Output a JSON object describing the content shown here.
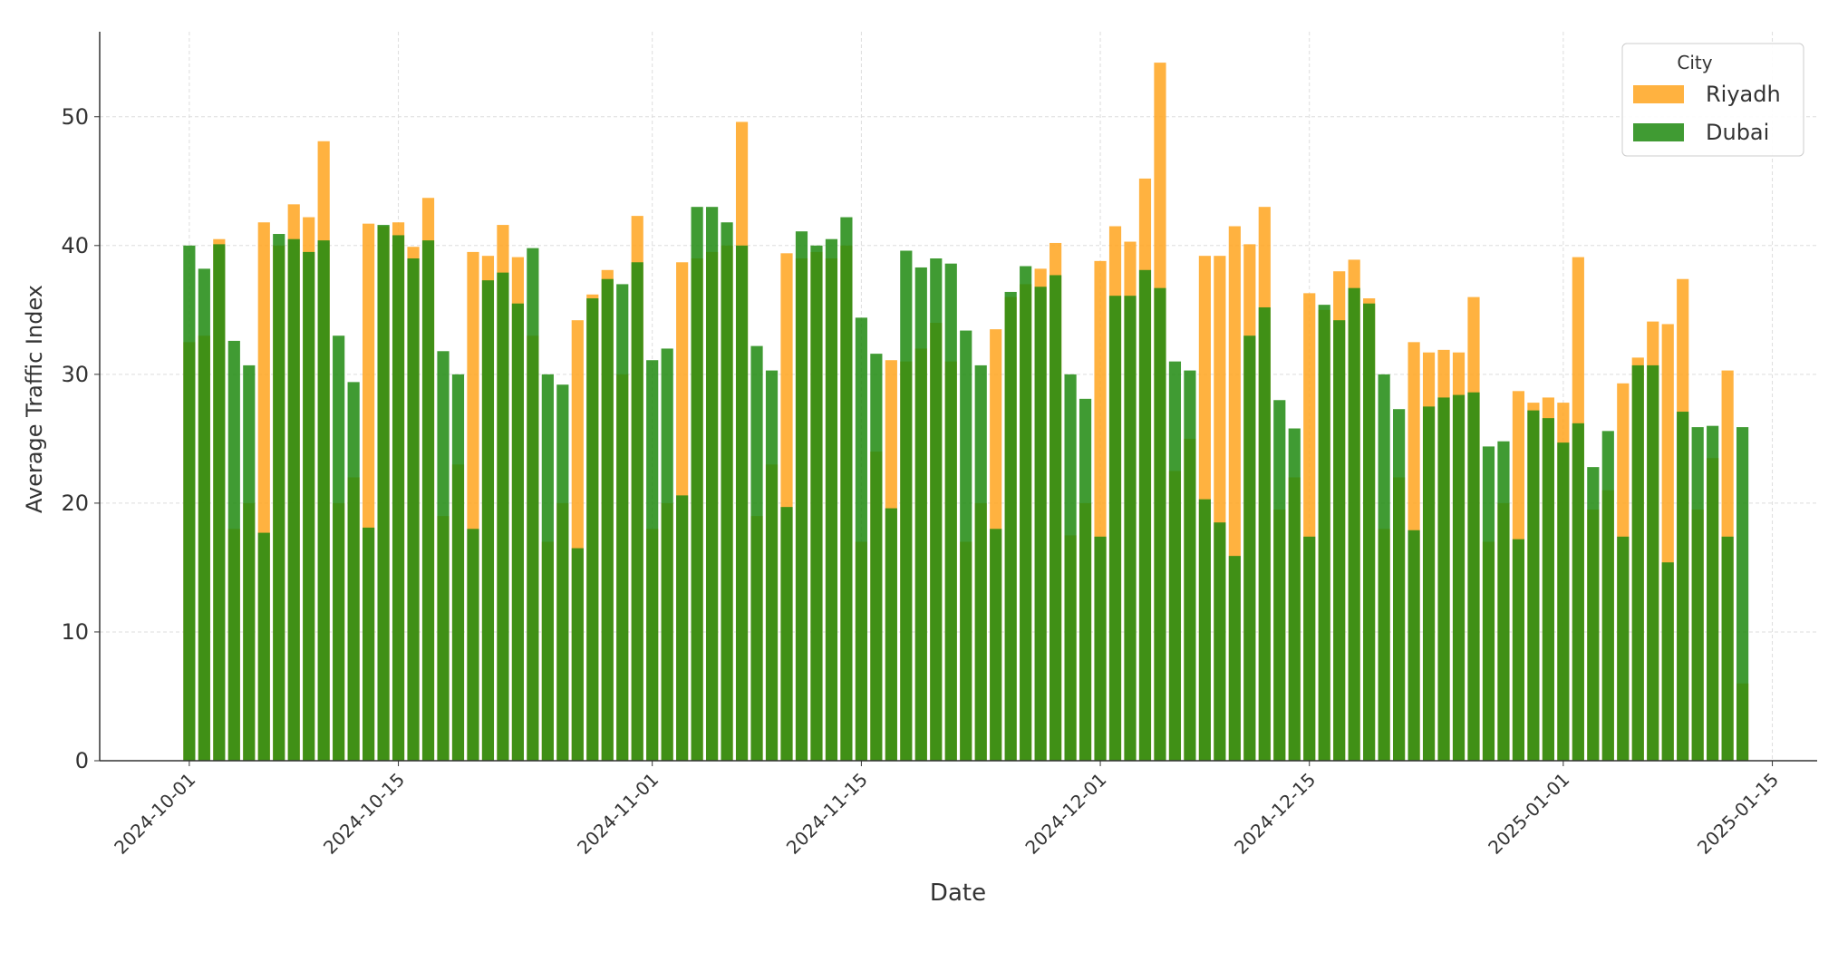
{
  "chart_data": {
    "type": "bar",
    "xlabel": "Date",
    "ylabel": "Average Traffic Index",
    "legend_title": "City",
    "legend": "upper right",
    "grid": true,
    "x": [
      "2024-10-01",
      "2024-10-02",
      "2024-10-03",
      "2024-10-04",
      "2024-10-05",
      "2024-10-06",
      "2024-10-07",
      "2024-10-08",
      "2024-10-09",
      "2024-10-10",
      "2024-10-11",
      "2024-10-12",
      "2024-10-13",
      "2024-10-14",
      "2024-10-15",
      "2024-10-16",
      "2024-10-17",
      "2024-10-18",
      "2024-10-19",
      "2024-10-20",
      "2024-10-21",
      "2024-10-22",
      "2024-10-23",
      "2024-10-24",
      "2024-10-25",
      "2024-10-26",
      "2024-10-27",
      "2024-10-28",
      "2024-10-29",
      "2024-10-30",
      "2024-10-31",
      "2024-11-01",
      "2024-11-02",
      "2024-11-03",
      "2024-11-04",
      "2024-11-05",
      "2024-11-06",
      "2024-11-07",
      "2024-11-08",
      "2024-11-09",
      "2024-11-10",
      "2024-11-11",
      "2024-11-12",
      "2024-11-13",
      "2024-11-14",
      "2024-11-15",
      "2024-11-16",
      "2024-11-17",
      "2024-11-18",
      "2024-11-19",
      "2024-11-20",
      "2024-11-21",
      "2024-11-22",
      "2024-11-23",
      "2024-11-24",
      "2024-11-25",
      "2024-11-26",
      "2024-11-27",
      "2024-11-28",
      "2024-11-29",
      "2024-11-30",
      "2024-12-01",
      "2024-12-02",
      "2024-12-03",
      "2024-12-04",
      "2024-12-05",
      "2024-12-06",
      "2024-12-07",
      "2024-12-08",
      "2024-12-09",
      "2024-12-10",
      "2024-12-11",
      "2024-12-12",
      "2024-12-13",
      "2024-12-14",
      "2024-12-15",
      "2024-12-16",
      "2024-12-17",
      "2024-12-18",
      "2024-12-19",
      "2024-12-20",
      "2024-12-21",
      "2024-12-22",
      "2024-12-23",
      "2024-12-24",
      "2024-12-25",
      "2024-12-26",
      "2024-12-27",
      "2024-12-28",
      "2024-12-29",
      "2024-12-30",
      "2024-12-31",
      "2025-01-01",
      "2025-01-02",
      "2025-01-03",
      "2025-01-04",
      "2025-01-05",
      "2025-01-06",
      "2025-01-07",
      "2025-01-08",
      "2025-01-09",
      "2025-01-10",
      "2025-01-11",
      "2025-01-12",
      "2025-01-13"
    ],
    "series": [
      {
        "name": "Riyadh",
        "color": "#ffa51f",
        "values": [
          32.5,
          33,
          40.5,
          18,
          20,
          41.8,
          40,
          43.2,
          42.2,
          48.1,
          20,
          22,
          41.7,
          41.5,
          41.8,
          39.9,
          43.7,
          19,
          23,
          39.5,
          39.2,
          41.6,
          39.1,
          33,
          17,
          20,
          34.2,
          36.2,
          38.1,
          30,
          42.3,
          18,
          20,
          38.7,
          39,
          39.5,
          40,
          49.6,
          19,
          23,
          39.4,
          39,
          39.5,
          39,
          40,
          17,
          24,
          31.1,
          31,
          32,
          34,
          31,
          17,
          20,
          33.5,
          36,
          37,
          38.2,
          40.2,
          17.5,
          20,
          38.8,
          41.5,
          40.3,
          45.2,
          54.2,
          22.5,
          25,
          39.2,
          39.2,
          41.5,
          40.1,
          43,
          19.5,
          22,
          36.3,
          35,
          38,
          38.9,
          35.9,
          18,
          22,
          32.5,
          31.7,
          31.9,
          31.7,
          36,
          17,
          20,
          28.7,
          27.8,
          28.2,
          27.8,
          39.1,
          19.5,
          21,
          29.3,
          31.3,
          34.1,
          33.9,
          37.4,
          19.5,
          23.5,
          30.3,
          6
        ]
      },
      {
        "name": "Dubai",
        "color": "#1f8a0f",
        "values": [
          40,
          38.2,
          40.1,
          32.6,
          30.7,
          17.7,
          40.9,
          40.5,
          39.5,
          40.4,
          33,
          29.4,
          18.1,
          41.6,
          40.8,
          39,
          40.4,
          31.8,
          30,
          18,
          37.3,
          37.9,
          35.5,
          39.8,
          30,
          29.2,
          16.5,
          35.9,
          37.4,
          37,
          38.7,
          31.1,
          32,
          20.6,
          43,
          43,
          41.8,
          40,
          32.2,
          30.3,
          19.7,
          41.1,
          40,
          40.5,
          42.2,
          34.4,
          31.6,
          19.6,
          39.6,
          38.3,
          39,
          38.6,
          33.4,
          30.7,
          18,
          36.4,
          38.4,
          36.8,
          37.7,
          30,
          28.1,
          17.4,
          36.1,
          36.1,
          38.1,
          36.7,
          31,
          30.3,
          20.3,
          18.5,
          15.9,
          33,
          35.2,
          28,
          25.8,
          17.4,
          35.4,
          34.2,
          36.7,
          35.5,
          30,
          27.3,
          17.9,
          27.5,
          28.2,
          28.4,
          28.6,
          24.4,
          24.8,
          17.2,
          27.2,
          26.6,
          24.7,
          26.2,
          22.8,
          25.6,
          17.4,
          30.7,
          30.7,
          15.4,
          27.1,
          25.9,
          26,
          17.4,
          25.9
        ]
      }
    ],
    "xlim": [
      "2024-09-25",
      "2025-01-18"
    ],
    "xticks": [
      "2024-10-01",
      "2024-10-15",
      "2024-11-01",
      "2024-11-15",
      "2024-12-01",
      "2024-12-15",
      "2025-01-01",
      "2025-01-15"
    ],
    "ylim": [
      0,
      56.6
    ],
    "yticks": [
      0,
      10,
      20,
      30,
      40,
      50
    ]
  }
}
